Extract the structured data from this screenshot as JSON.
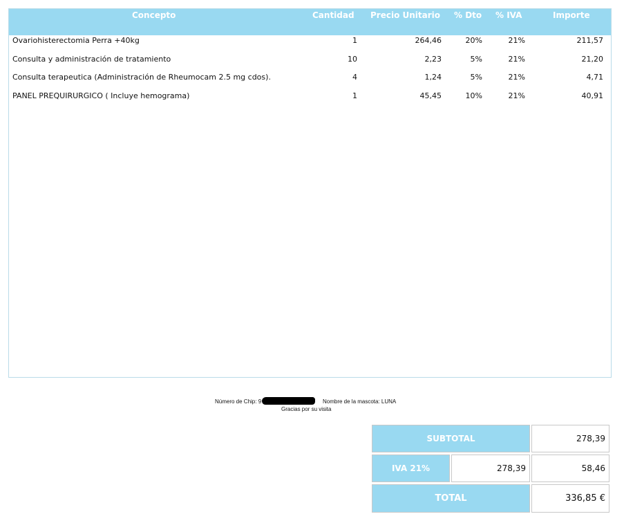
{
  "table": {
    "headers": {
      "concept": "Concepto",
      "quantity": "Cantidad",
      "unit_price": "Precio Unitario",
      "discount": "% Dto",
      "vat": "% IVA",
      "amount": "Importe"
    },
    "rows": [
      {
        "concept": "Ovariohisterectomia Perra +40kg",
        "quantity": "1",
        "unit_price": "264,46",
        "discount": "20%",
        "vat": "21%",
        "amount": "211,57"
      },
      {
        "concept": "Consulta y administración de tratamiento",
        "quantity": "10",
        "unit_price": "2,23",
        "discount": "5%",
        "vat": "21%",
        "amount": "21,20"
      },
      {
        "concept": "Consulta terapeutica (Administración de Rheumocam 2.5 mg cdos).",
        "quantity": "4",
        "unit_price": "1,24",
        "discount": "5%",
        "vat": "21%",
        "amount": "4,71"
      },
      {
        "concept": "PANEL PREQUIRURGICO ( Incluye hemograma)",
        "quantity": "1",
        "unit_price": "45,45",
        "discount": "10%",
        "vat": "21%",
        "amount": "40,91"
      }
    ]
  },
  "footer": {
    "chip_label": "Número de Chip: 9",
    "pet_name_label": "Nombre de la mascota: LUNA",
    "thanks": "Gracias por su visita"
  },
  "totals": {
    "subtotal_label": "SUBTOTAL",
    "subtotal_value": "278,39",
    "vat_label": "IVA 21%",
    "vat_base": "278,39",
    "vat_amount": "58,46",
    "total_label": "TOTAL",
    "total_value": "336,85 €"
  },
  "colors": {
    "header_blue": "#99d9f1",
    "border_light_blue": "#b9dbe8"
  }
}
